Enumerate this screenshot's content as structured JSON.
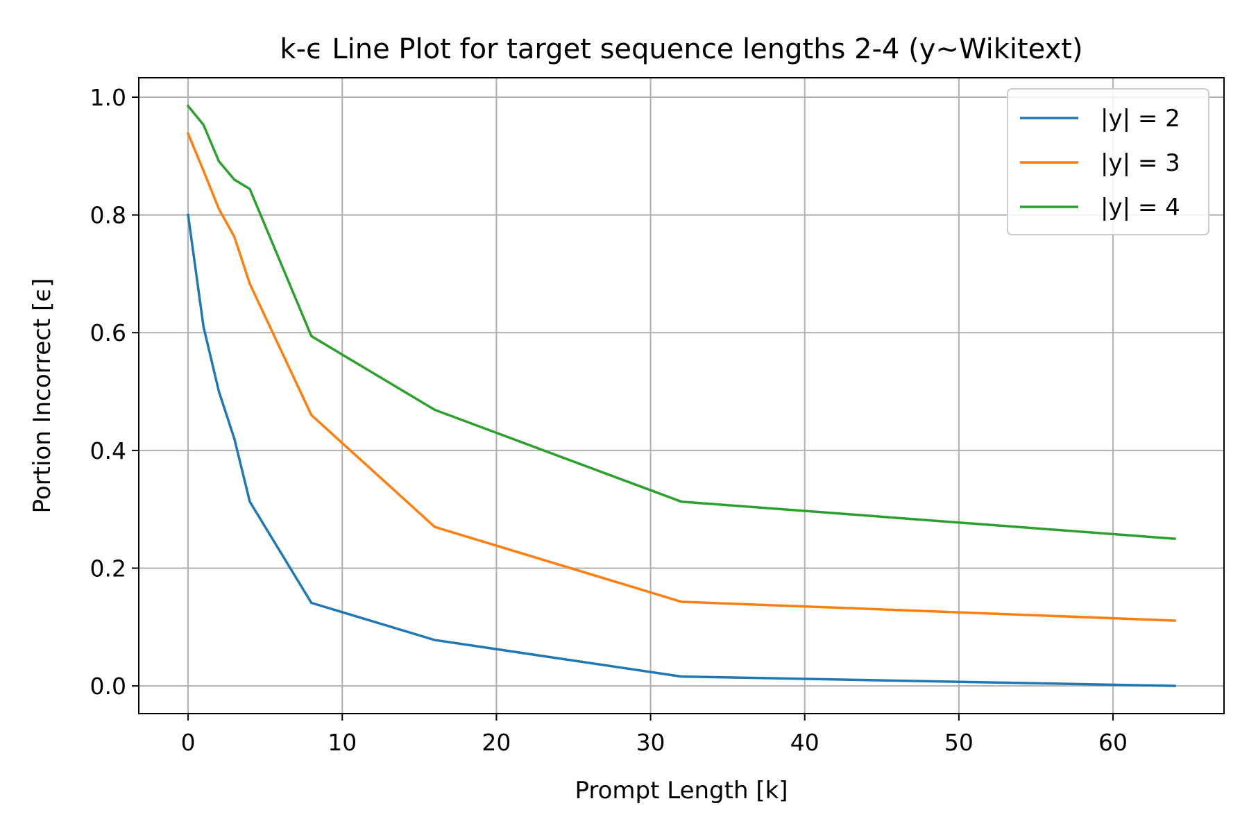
{
  "chart_data": {
    "type": "line",
    "title": "k-ϵ Line Plot for target sequence lengths 2-4 (y~Wikitext)",
    "xlabel": "Prompt Length [k]",
    "ylabel": "Portion Incorrect [ϵ]",
    "xlim": [
      -3.2,
      67.2
    ],
    "ylim": [
      -0.047,
      1.033
    ],
    "xticks": [
      0,
      10,
      20,
      30,
      40,
      50,
      60
    ],
    "yticks": [
      0.0,
      0.2,
      0.4,
      0.6,
      0.8,
      1.0
    ],
    "xtick_labels": [
      "0",
      "10",
      "20",
      "30",
      "40",
      "50",
      "60"
    ],
    "ytick_labels": [
      "0.0",
      "0.2",
      "0.4",
      "0.6",
      "0.8",
      "1.0"
    ],
    "grid": true,
    "legend_position": "top-right",
    "x": [
      0,
      1,
      2,
      3,
      4,
      8,
      16,
      32,
      64
    ],
    "series": [
      {
        "name": "|y| = 2",
        "color": "#1f77b4",
        "values": [
          0.8,
          0.61,
          0.5,
          0.42,
          0.313,
          0.141,
          0.078,
          0.016,
          0.0
        ]
      },
      {
        "name": "|y| = 3",
        "color": "#ff7f0e",
        "values": [
          0.938,
          0.875,
          0.81,
          0.763,
          0.683,
          0.46,
          0.27,
          0.143,
          0.111
        ]
      },
      {
        "name": "|y| = 4",
        "color": "#2ca02c",
        "values": [
          0.985,
          0.953,
          0.891,
          0.86,
          0.844,
          0.594,
          0.469,
          0.313,
          0.25
        ]
      }
    ]
  }
}
